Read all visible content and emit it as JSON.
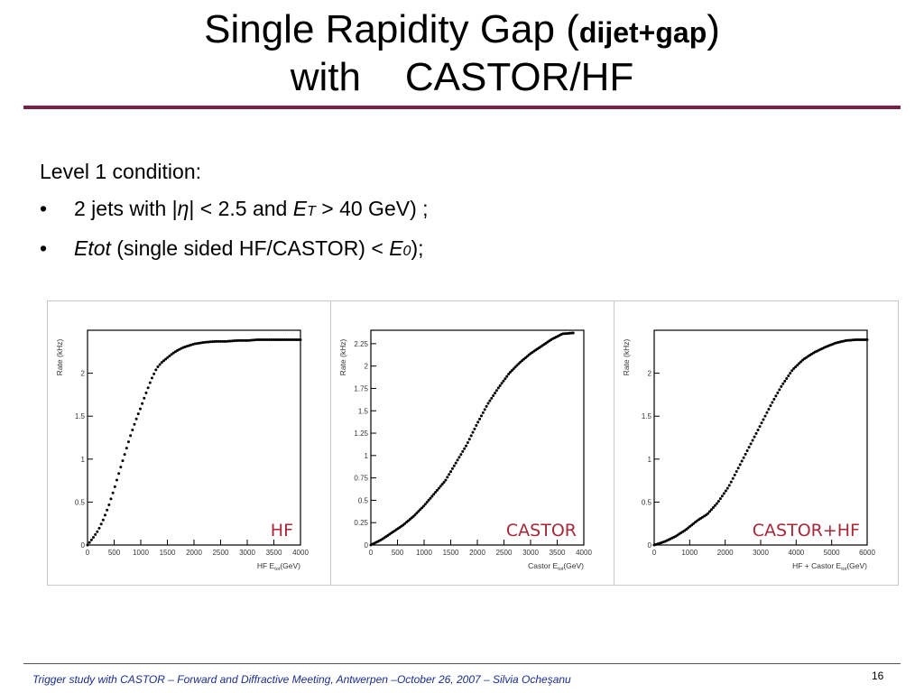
{
  "slide": {
    "title_line1_main": "Single Rapidity Gap (",
    "title_line1_small": "dijet+gap",
    "title_line1_close": ")",
    "title_line2": "with    CASTOR/HF",
    "condition_label": "Level 1 condition:",
    "bullet_char": "•",
    "bullet1": {
      "text_a": "2 jets with |",
      "eta": "η",
      "text_b": "| < 2.5 and ",
      "E": "E",
      "T": "T",
      "text_c": " > 40 GeV) ;"
    },
    "bullet2": {
      "Etot": "Etot",
      "text_a": " (single sided HF/CASTOR) < ",
      "E": "E",
      "zero": "0",
      "text_b": ");"
    },
    "footer": "Trigger study with  CASTOR – Forward and Diffractive Meeting, Antwerpen –October 26, 2007 – Silvia Ocheşanu",
    "page_number": "16",
    "accent_color": "#7a1f45",
    "footer_color": "#1a2d8c"
  },
  "chart_data": [
    {
      "type": "scatter",
      "label": "HF",
      "ylabel": "Rate (kHz)",
      "xlabel_a": "HF E",
      "xlabel_sub": "tot",
      "xlabel_b": "(GeV)",
      "xlim": [
        0,
        4000
      ],
      "ylim": [
        0,
        2.5
      ],
      "xticks": [
        0,
        500,
        1000,
        1500,
        2000,
        2500,
        3000,
        3500,
        4000
      ],
      "yticks": [
        0,
        0.5,
        1,
        1.5,
        2
      ],
      "ytick_labels": [
        "0",
        "0.5",
        "1",
        "1.5",
        "2"
      ],
      "curve_x": [
        0,
        100,
        200,
        300,
        400,
        500,
        600,
        700,
        800,
        900,
        1000,
        1100,
        1200,
        1300,
        1400,
        1500,
        1600,
        1700,
        1800,
        1900,
        2000,
        2200,
        2400,
        2600,
        2800,
        3000,
        3200,
        3400,
        3600,
        3800,
        4000
      ],
      "curve_y": [
        0.0,
        0.08,
        0.17,
        0.3,
        0.46,
        0.65,
        0.86,
        1.06,
        1.26,
        1.44,
        1.6,
        1.77,
        1.93,
        2.06,
        2.13,
        2.18,
        2.23,
        2.27,
        2.3,
        2.32,
        2.34,
        2.36,
        2.37,
        2.37,
        2.38,
        2.38,
        2.39,
        2.39,
        2.39,
        2.39,
        2.39
      ],
      "n_points": 110,
      "label_color": "#a8283a"
    },
    {
      "type": "scatter",
      "label": "CASTOR",
      "ylabel": "Rate (kHz)",
      "xlabel_a": "Castor E",
      "xlabel_sub": "tot",
      "xlabel_b": "(GeV)",
      "xlim": [
        0,
        4000
      ],
      "ylim": [
        0,
        2.4
      ],
      "xticks": [
        0,
        500,
        1000,
        1500,
        2000,
        2500,
        3000,
        3500,
        4000
      ],
      "yticks": [
        0,
        0.25,
        0.5,
        0.75,
        1,
        1.25,
        1.5,
        1.75,
        2,
        2.25
      ],
      "ytick_labels": [
        "0",
        "0.25",
        "0.5",
        "0.75",
        "1",
        "1.25",
        "1.5",
        "1.75",
        "2",
        "2.25"
      ],
      "curve_x": [
        0,
        200,
        400,
        600,
        800,
        1000,
        1200,
        1400,
        1600,
        1800,
        2000,
        2200,
        2400,
        2600,
        2800,
        3000,
        3200,
        3400,
        3600,
        3800
      ],
      "curve_y": [
        0.0,
        0.06,
        0.14,
        0.22,
        0.32,
        0.44,
        0.58,
        0.72,
        0.92,
        1.12,
        1.36,
        1.58,
        1.76,
        1.92,
        2.04,
        2.14,
        2.22,
        2.3,
        2.36,
        2.37
      ],
      "n_points": 120,
      "label_color": "#a8283a"
    },
    {
      "type": "scatter",
      "label": "CASTOR+HF",
      "ylabel": "Rate (kHz)",
      "xlabel_a": "HF + Castor E",
      "xlabel_sub": "tot",
      "xlabel_b": "(GeV)",
      "xlim": [
        0,
        6000
      ],
      "ylim": [
        0,
        2.5
      ],
      "xticks": [
        0,
        1000,
        2000,
        3000,
        4000,
        5000,
        6000
      ],
      "yticks": [
        0,
        0.5,
        1,
        1.5,
        2
      ],
      "ytick_labels": [
        "0",
        "0.5",
        "1",
        "1.5",
        "2"
      ],
      "curve_x": [
        0,
        300,
        600,
        900,
        1200,
        1500,
        1800,
        2100,
        2400,
        2700,
        3000,
        3300,
        3600,
        3900,
        4200,
        4500,
        4800,
        5100,
        5400,
        5700,
        6000
      ],
      "curve_y": [
        0.0,
        0.04,
        0.1,
        0.18,
        0.28,
        0.36,
        0.5,
        0.68,
        0.92,
        1.16,
        1.4,
        1.64,
        1.86,
        2.04,
        2.16,
        2.24,
        2.3,
        2.35,
        2.38,
        2.39,
        2.39
      ],
      "n_points": 120,
      "label_color": "#a8283a"
    }
  ]
}
